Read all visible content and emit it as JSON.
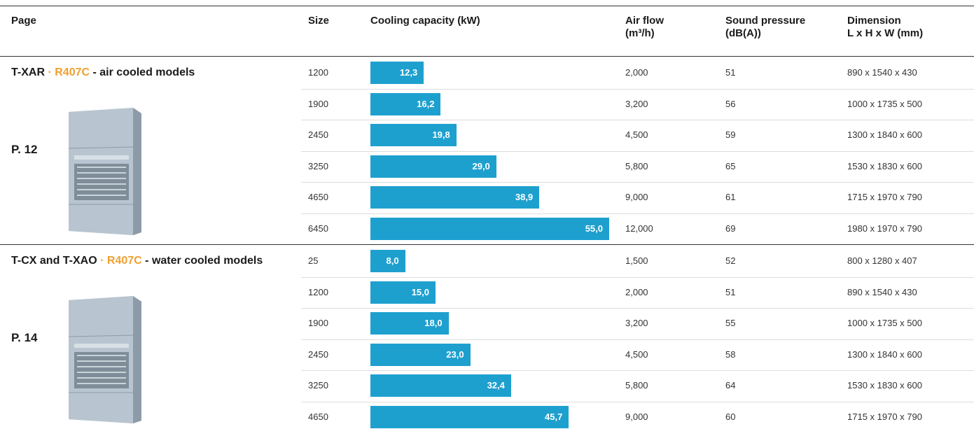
{
  "header": {
    "columns": [
      [
        "Page"
      ],
      [
        "Size"
      ],
      [
        "Cooling capacity (kW)"
      ],
      [
        "Air flow",
        "(m³/h)"
      ],
      [
        "Sound pressure",
        "(dB(A))"
      ],
      [
        "Dimension",
        "L x H x W (mm)"
      ]
    ]
  },
  "groups": [
    {
      "name": "T-XAR",
      "separator": "·",
      "refrigerant": "R407C",
      "description": "- air cooled models",
      "page": "P. 12",
      "rows": [
        {
          "size": "1200",
          "capacity": 12.3,
          "capacity_label": "12,3",
          "air_flow": "2,000",
          "sound": 51,
          "dimension": "890 x 1540 x 430"
        },
        {
          "size": "1900",
          "capacity": 16.2,
          "capacity_label": "16,2",
          "air_flow": "3,200",
          "sound": 56,
          "dimension": "1000 x 1735 x 500"
        },
        {
          "size": "2450",
          "capacity": 19.8,
          "capacity_label": "19,8",
          "air_flow": "4,500",
          "sound": 59,
          "dimension": "1300 x 1840 x 600"
        },
        {
          "size": "3250",
          "capacity": 29.0,
          "capacity_label": "29,0",
          "air_flow": "5,800",
          "sound": 65,
          "dimension": "1530 x 1830 x 600"
        },
        {
          "size": "4650",
          "capacity": 38.9,
          "capacity_label": "38,9",
          "air_flow": "9,000",
          "sound": 61,
          "dimension": "1715 x 1970 x 790"
        },
        {
          "size": "6450",
          "capacity": 55.0,
          "capacity_label": "55,0",
          "air_flow": "12,000",
          "sound": 69,
          "dimension": "1980 x 1970 x 790"
        }
      ]
    },
    {
      "name": "T-CX and T-XAO",
      "separator": "·",
      "refrigerant": "R407C",
      "description": "- water cooled models",
      "page": "P. 14",
      "rows": [
        {
          "size": "25",
          "capacity": 8.0,
          "capacity_label": "8,0",
          "air_flow": "1,500",
          "sound": 52,
          "dimension": "800 x 1280 x 407"
        },
        {
          "size": "1200",
          "capacity": 15.0,
          "capacity_label": "15,0",
          "air_flow": "2,000",
          "sound": 51,
          "dimension": "890 x 1540 x 430"
        },
        {
          "size": "1900",
          "capacity": 18.0,
          "capacity_label": "18,0",
          "air_flow": "3,200",
          "sound": 55,
          "dimension": "1000 x 1735 x 500"
        },
        {
          "size": "2450",
          "capacity": 23.0,
          "capacity_label": "23,0",
          "air_flow": "4,500",
          "sound": 58,
          "dimension": "1300 x 1840 x 600"
        },
        {
          "size": "3250",
          "capacity": 32.4,
          "capacity_label": "32,4",
          "air_flow": "5,800",
          "sound": 64,
          "dimension": "1530 x 1830 x 600"
        },
        {
          "size": "4650",
          "capacity": 45.7,
          "capacity_label": "45,7",
          "air_flow": "9,000",
          "sound": 60,
          "dimension": "1715 x 1970 x 790"
        }
      ]
    }
  ]
}
